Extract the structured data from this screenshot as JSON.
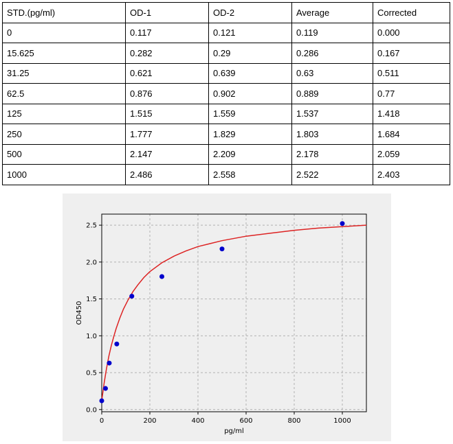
{
  "table": {
    "headers": [
      "STD.(pg/ml)",
      "OD-1",
      "OD-2",
      "Average",
      "Corrected"
    ],
    "rows": [
      [
        "0",
        "0.117",
        "0.121",
        "0.119",
        "0.000"
      ],
      [
        "15.625",
        "0.282",
        "0.29",
        "0.286",
        "0.167"
      ],
      [
        "31.25",
        "0.621",
        "0.639",
        "0.63",
        "0.511"
      ],
      [
        "62.5",
        "0.876",
        "0.902",
        "0.889",
        "0.77"
      ],
      [
        "125",
        "1.515",
        "1.559",
        "1.537",
        "1.418"
      ],
      [
        "250",
        "1.777",
        "1.829",
        "1.803",
        "1.684"
      ],
      [
        "500",
        "2.147",
        "2.209",
        "2.178",
        "2.059"
      ],
      [
        "1000",
        "2.486",
        "2.558",
        "2.522",
        "2.403"
      ]
    ]
  },
  "chart_data": {
    "type": "scatter",
    "xlabel": "pg/ml",
    "ylabel": "OD450",
    "xlim": [
      0,
      1100
    ],
    "ylim": [
      -0.03,
      2.65
    ],
    "xticks": [
      "0",
      "200",
      "400",
      "600",
      "800",
      "1000"
    ],
    "yticks": [
      "0.0",
      "0.5",
      "1.0",
      "1.5",
      "2.0",
      "2.5"
    ],
    "grid": true,
    "points": {
      "x": [
        0,
        15.625,
        31.25,
        62.5,
        125,
        250,
        500,
        1000
      ],
      "y": [
        0.119,
        0.286,
        0.63,
        0.889,
        1.537,
        1.803,
        2.178,
        2.522
      ],
      "color": "#0000cc"
    },
    "fit_curve": {
      "color": "#dd2222",
      "x": [
        0,
        10,
        20,
        30,
        40,
        50,
        60,
        75,
        90,
        110,
        130,
        150,
        175,
        200,
        250,
        300,
        350,
        400,
        450,
        500,
        600,
        700,
        800,
        900,
        1000,
        1100
      ],
      "y": [
        0.12,
        0.36,
        0.56,
        0.73,
        0.87,
        0.99,
        1.1,
        1.24,
        1.36,
        1.49,
        1.6,
        1.69,
        1.79,
        1.87,
        1.99,
        2.08,
        2.15,
        2.21,
        2.25,
        2.29,
        2.35,
        2.39,
        2.43,
        2.46,
        2.48,
        2.5
      ]
    }
  }
}
